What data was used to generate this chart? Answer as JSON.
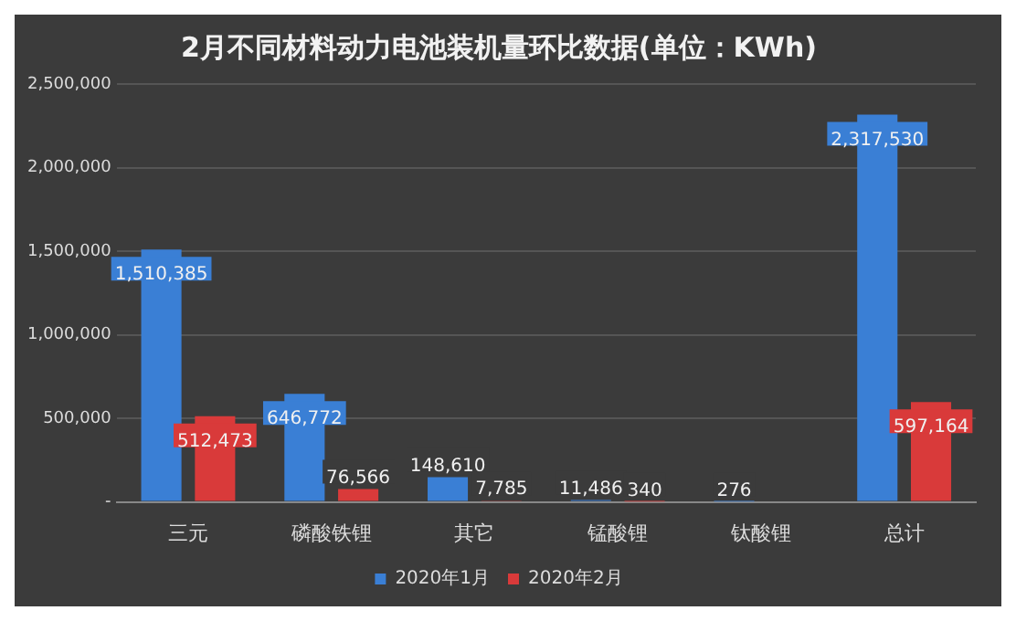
{
  "chart_data": {
    "type": "bar",
    "title": "2月不同材料动力电池装机量环比数据(单位：KWh)",
    "categories": [
      "三元",
      "磷酸铁锂",
      "其它",
      "锰酸锂",
      "钛酸锂",
      "总计"
    ],
    "series": [
      {
        "name": "2020年1月",
        "color": "#3a7fd5",
        "values": [
          1510385,
          646772,
          148610,
          11486,
          276,
          2317530
        ],
        "value_labels": [
          "1,510,385",
          "646,772",
          "148,610",
          "11,486",
          "276",
          "2,317,530"
        ]
      },
      {
        "name": "2020年2月",
        "color": "#d93a3a",
        "values": [
          512473,
          76566,
          7785,
          340,
          null,
          597164
        ],
        "value_labels": [
          "512,473",
          "76,566",
          "7,785",
          "340",
          null,
          "597,164"
        ]
      }
    ],
    "ylim": [
      0,
      2500000
    ],
    "yticks": [
      {
        "value": 0,
        "label": "-"
      },
      {
        "value": 500000,
        "label": "500,000"
      },
      {
        "value": 1000000,
        "label": "1,000,000"
      },
      {
        "value": 1500000,
        "label": "1,500,000"
      },
      {
        "value": 2000000,
        "label": "2,000,000"
      },
      {
        "value": 2500000,
        "label": "2,500,000"
      }
    ],
    "grid": "y",
    "legend": "bottom"
  }
}
